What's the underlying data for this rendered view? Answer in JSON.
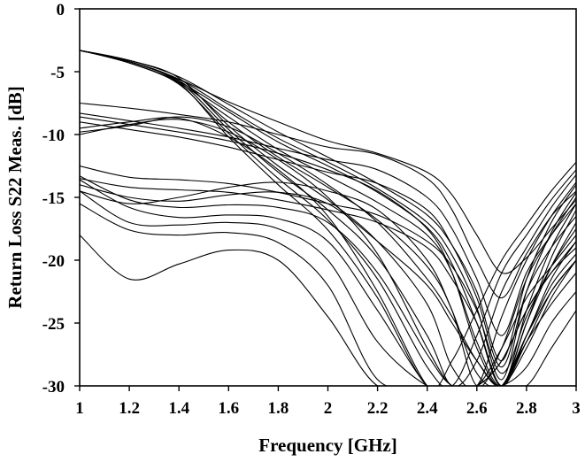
{
  "chart_data": {
    "type": "line",
    "title": "",
    "xlabel": "Frequency [GHz]",
    "ylabel": "Return Loss S22 Meas. [dB]",
    "xlim": [
      1,
      3
    ],
    "ylim": [
      -30,
      0
    ],
    "x_ticks": [
      1,
      1.2,
      1.4,
      1.6,
      1.8,
      2,
      2.2,
      2.4,
      2.6,
      2.8,
      3
    ],
    "x_tick_labels": [
      "1",
      "1.2",
      "1.4",
      "1.6",
      "1.8",
      "2",
      "2.2",
      "2.4",
      "2.6",
      "2.8",
      "3"
    ],
    "y_ticks": [
      0,
      -5,
      -10,
      -15,
      -20,
      -25,
      -30
    ],
    "y_tick_labels": [
      "0",
      "-5",
      "-10",
      "-15",
      "-20",
      "-25",
      "-30"
    ],
    "grid": false,
    "legend": "none",
    "line_color": "#000000",
    "x": [
      1.0,
      1.2,
      1.4,
      1.6,
      1.8,
      2.0,
      2.2,
      2.4,
      2.5,
      2.6,
      2.7,
      2.8,
      2.9,
      3.0
    ],
    "series": [
      {
        "values": [
          -3.3,
          -4.3,
          -5.8,
          -8.2,
          -10.6,
          -12.5,
          -14.6,
          -17.4,
          -20.3,
          -25.0,
          -30.0,
          -24.0,
          -19.0,
          -15.5
        ]
      },
      {
        "values": [
          -3.3,
          -4.2,
          -5.6,
          -8.0,
          -10.3,
          -12.2,
          -14.3,
          -17.0,
          -19.6,
          -23.8,
          -29.5,
          -22.5,
          -17.8,
          -14.6
        ]
      },
      {
        "values": [
          -3.3,
          -4.1,
          -5.4,
          -7.6,
          -9.8,
          -11.8,
          -13.9,
          -16.4,
          -18.8,
          -22.5,
          -28.0,
          -21.5,
          -17.0,
          -14.0
        ]
      },
      {
        "values": [
          -3.3,
          -4.3,
          -5.9,
          -8.6,
          -11.2,
          -13.3,
          -15.4,
          -18.0,
          -21.0,
          -26.5,
          -30.0,
          -25.0,
          -19.8,
          -16.0
        ]
      },
      {
        "values": [
          -3.3,
          -4.2,
          -5.7,
          -9.0,
          -11.8,
          -14.2,
          -16.8,
          -20.5,
          -24.0,
          -30.0,
          -27.0,
          -21.5,
          -18.0,
          -15.0
        ]
      },
      {
        "values": [
          -3.3,
          -4.1,
          -5.5,
          -9.3,
          -12.5,
          -15.2,
          -18.5,
          -23.5,
          -28.5,
          -30.0,
          -24.5,
          -20.0,
          -16.5,
          -13.8
        ]
      },
      {
        "values": [
          -3.3,
          -4.2,
          -5.8,
          -9.6,
          -13.0,
          -16.0,
          -19.8,
          -26.0,
          -30.0,
          -28.0,
          -22.5,
          -19.0,
          -15.8,
          -13.2
        ]
      },
      {
        "values": [
          -3.3,
          -4.3,
          -6.0,
          -9.9,
          -13.5,
          -16.8,
          -21.5,
          -28.5,
          -30.0,
          -26.0,
          -21.0,
          -18.0,
          -15.2,
          -12.8
        ]
      },
      {
        "values": [
          -3.3,
          -4.2,
          -5.9,
          -10.2,
          -14.0,
          -17.6,
          -23.0,
          -30.0,
          -28.0,
          -24.0,
          -20.0,
          -17.2,
          -14.5,
          -12.2
        ]
      },
      {
        "values": [
          -7.5,
          -7.9,
          -8.4,
          -9.0,
          -10.0,
          -11.0,
          -11.6,
          -13.5,
          -16.0,
          -20.0,
          -23.0,
          -19.5,
          -16.5,
          -14.5
        ]
      },
      {
        "values": [
          -8.3,
          -8.9,
          -9.5,
          -10.2,
          -11.1,
          -12.0,
          -12.8,
          -15.0,
          -17.5,
          -21.5,
          -26.0,
          -21.0,
          -18.0,
          -15.5
        ]
      },
      {
        "values": [
          -9.0,
          -9.6,
          -10.2,
          -11.0,
          -12.0,
          -13.0,
          -13.9,
          -16.0,
          -18.8,
          -23.0,
          -28.5,
          -22.5,
          -19.0,
          -16.5
        ]
      },
      {
        "values": [
          -9.8,
          -9.3,
          -8.6,
          -9.4,
          -11.5,
          -14.0,
          -17.0,
          -21.5,
          -24.5,
          -28.0,
          -30.0,
          -26.0,
          -22.0,
          -19.5
        ]
      },
      {
        "values": [
          -10.0,
          -9.2,
          -8.8,
          -9.8,
          -12.0,
          -15.0,
          -19.5,
          -27.0,
          -30.0,
          -30.0,
          -28.0,
          -24.0,
          -21.0,
          -18.5
        ]
      },
      {
        "values": [
          -9.5,
          -9.0,
          -8.7,
          -10.2,
          -12.8,
          -16.5,
          -22.5,
          -30.0,
          -30.0,
          -30.0,
          -30.0,
          -26.0,
          -22.5,
          -20.0
        ]
      },
      {
        "values": [
          -12.5,
          -13.4,
          -13.6,
          -13.9,
          -14.6,
          -15.5,
          -16.4,
          -18.5,
          -20.5,
          -24.0,
          -29.0,
          -24.5,
          -20.5,
          -17.5
        ]
      },
      {
        "values": [
          -13.5,
          -14.2,
          -14.4,
          -14.6,
          -15.2,
          -16.0,
          -17.0,
          -19.0,
          -21.5,
          -25.0,
          -30.0,
          -26.0,
          -21.5,
          -18.5
        ]
      },
      {
        "values": [
          -14.0,
          -15.0,
          -15.3,
          -14.8,
          -14.6,
          -15.5,
          -18.5,
          -22.0,
          -25.0,
          -28.0,
          -30.0,
          -26.5,
          -22.5,
          -20.0
        ]
      },
      {
        "values": [
          -13.3,
          -15.2,
          -15.8,
          -15.6,
          -15.8,
          -17.0,
          -21.0,
          -27.5,
          -30.0,
          -30.0,
          -28.0,
          -24.0,
          -21.0,
          -19.0
        ]
      },
      {
        "values": [
          -13.6,
          -15.8,
          -16.6,
          -16.4,
          -16.7,
          -18.5,
          -24.0,
          -30.0,
          -30.0,
          -30.0,
          -27.0,
          -23.0,
          -20.5,
          -18.0
        ]
      },
      {
        "values": [
          -14.5,
          -17.0,
          -17.2,
          -17.0,
          -17.5,
          -20.0,
          -26.5,
          -30.0,
          -30.0,
          -30.0,
          -30.0,
          -26.5,
          -23.5,
          -21.0
        ]
      },
      {
        "values": [
          -15.5,
          -17.6,
          -18.0,
          -17.8,
          -18.6,
          -22.0,
          -29.5,
          -30.0,
          -30.0,
          -30.0,
          -30.0,
          -28.5,
          -25.0,
          -22.5
        ]
      },
      {
        "values": [
          -18.0,
          -21.5,
          -20.3,
          -19.2,
          -20.0,
          -24.5,
          -30.0,
          -30.0,
          -30.0,
          -30.0,
          -30.0,
          -30.0,
          -27.0,
          -24.0
        ]
      },
      {
        "values": [
          -3.3,
          -4.2,
          -5.6,
          -7.4,
          -9.0,
          -10.5,
          -11.5,
          -13.0,
          -14.8,
          -18.0,
          -21.0,
          -19.8,
          -17.5,
          -15.2
        ]
      },
      {
        "values": [
          -8.6,
          -9.2,
          -9.8,
          -10.5,
          -11.5,
          -12.8,
          -14.5,
          -17.5,
          -21.0,
          -27.0,
          -30.0,
          -25.0,
          -20.5,
          -17.0
        ]
      },
      {
        "values": [
          -14.5,
          -15.5,
          -15.0,
          -14.2,
          -13.8,
          -14.5,
          -16.0,
          -20.0,
          -24.0,
          -29.0,
          -30.0,
          -27.0,
          -23.0,
          -20.0
        ]
      }
    ]
  }
}
